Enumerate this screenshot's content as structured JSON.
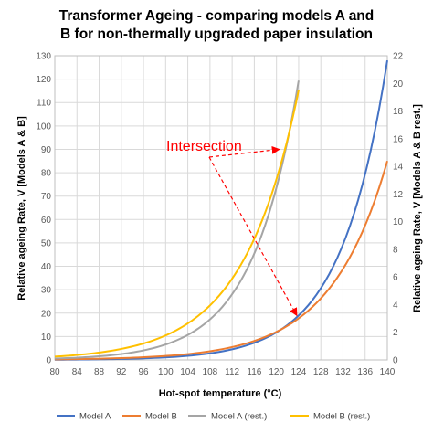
{
  "chart_data": {
    "type": "line",
    "title_lines": [
      "Transformer Ageing - comparing models A and",
      "B for non-thermally upgraded paper insulation"
    ],
    "xlabel": "Hot-spot temperature (°C)",
    "ylabel_left": "Relative ageing Rate, V [Models A & B]",
    "ylabel_right": "Relative ageing Rate, V [Models A & B rest.]",
    "xlim": [
      80,
      140
    ],
    "ylim_left": [
      0,
      130
    ],
    "ylim_right": [
      0,
      22
    ],
    "x_ticks": [
      "80",
      "84",
      "88",
      "92",
      "96",
      "100",
      "104",
      "108",
      "112",
      "116",
      "120",
      "124",
      "128",
      "132",
      "136",
      "140"
    ],
    "y_left_ticks": [
      "0",
      "10",
      "20",
      "30",
      "40",
      "50",
      "60",
      "70",
      "80",
      "90",
      "100",
      "110",
      "120",
      "130"
    ],
    "y_right_ticks": [
      "0",
      "2",
      "4",
      "6",
      "8",
      "10",
      "12",
      "14",
      "16",
      "18",
      "20",
      "22"
    ],
    "grid": true,
    "legend_position": "bottom",
    "series": [
      {
        "name": "Model A",
        "axis": "left",
        "color": "#4472C4",
        "x": [
          80,
          140
        ],
        "y": [
          0.1,
          128
        ]
      },
      {
        "name": "Model B",
        "axis": "left",
        "color": "#ED7D31",
        "x": [
          80,
          140
        ],
        "y": [
          0.24,
          85
        ]
      },
      {
        "name": "Model A (rest.)",
        "axis": "right",
        "color": "#A5A5A5",
        "x": [
          80,
          124
        ],
        "y": [
          0.1,
          20.2
        ]
      },
      {
        "name": "Model B (rest.)",
        "axis": "right",
        "color": "#FFC000",
        "x": [
          80,
          124
        ],
        "y": [
          0.24,
          19.5
        ]
      }
    ],
    "annotation": {
      "text": "Intersection",
      "color": "#FF0000",
      "points": [
        {
          "x": 121,
          "y": 90
        },
        {
          "x": 124,
          "y": 19
        }
      ]
    }
  }
}
